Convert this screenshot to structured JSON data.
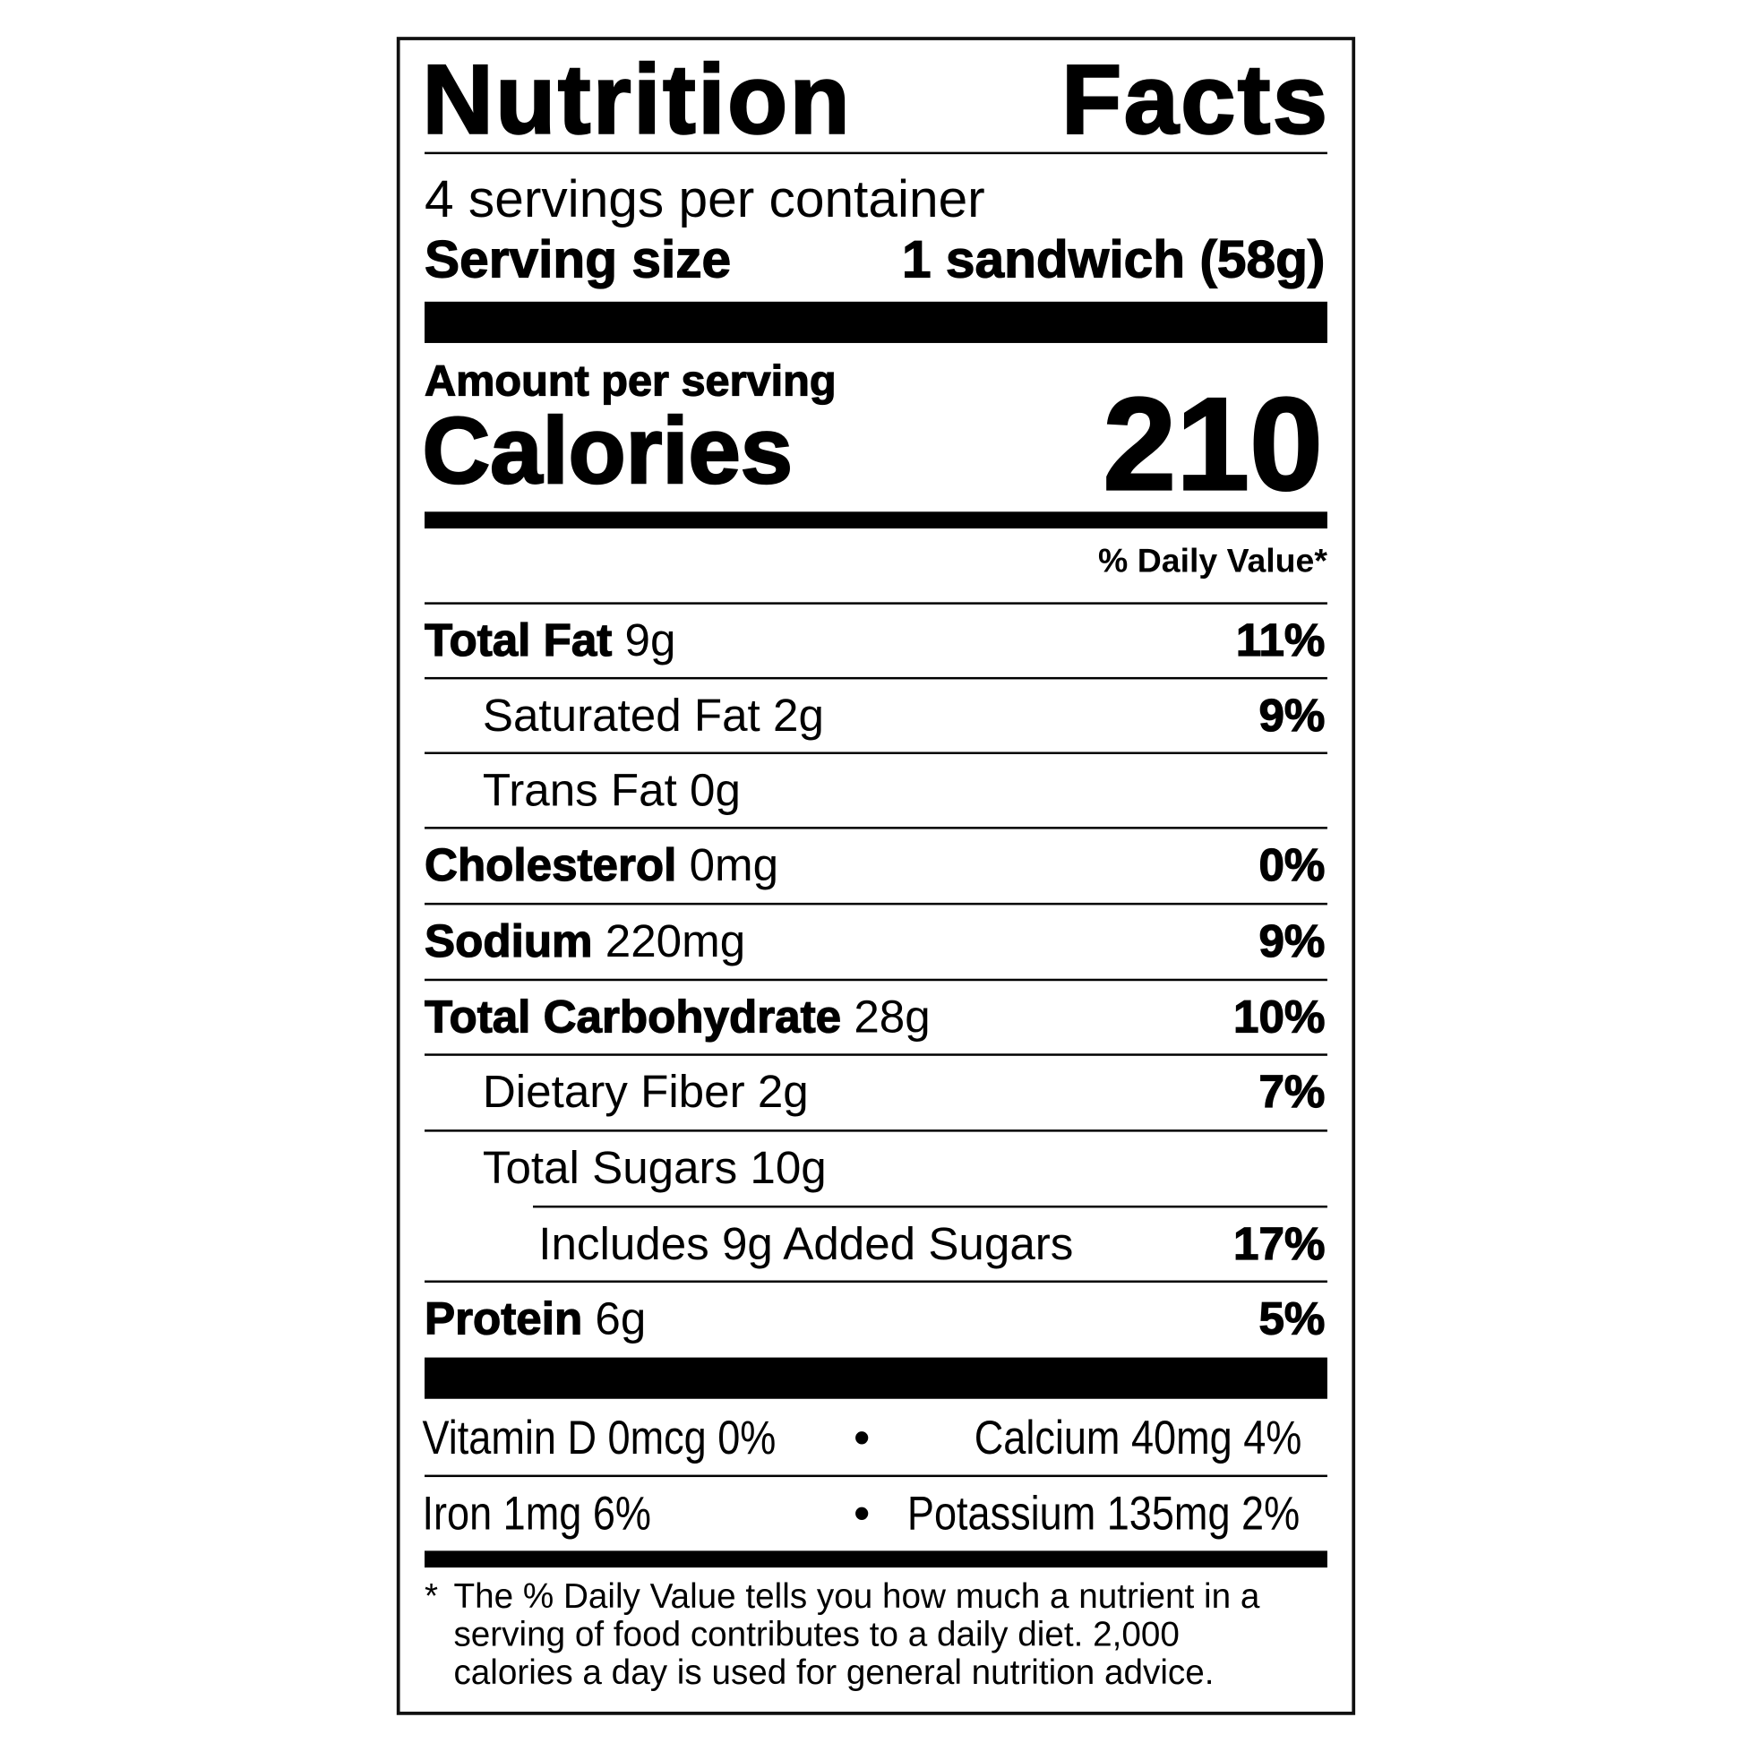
{
  "title_left": "Nutrition",
  "title_right": "Facts",
  "servings_per_container": "4 servings per container",
  "serving_size_label": "Serving size",
  "serving_size_value": "1 sandwich (58g)",
  "amount_per_serving": "Amount per serving",
  "calories_label": "Calories",
  "calories_value": "210",
  "daily_value_header": "% Daily Value*",
  "nutrients": [
    {
      "name": "Total Fat",
      "amount": "9g",
      "dv": "11%"
    },
    {
      "name": "Saturated Fat",
      "amount": "2g",
      "dv": "9%"
    },
    {
      "name": "Trans Fat",
      "amount": "0g",
      "dv": ""
    },
    {
      "name": "Cholesterol",
      "amount": "0mg",
      "dv": "0%"
    },
    {
      "name": "Sodium",
      "amount": "220mg",
      "dv": "9%"
    },
    {
      "name": "Total Carbohydrate",
      "amount": "28g",
      "dv": "10%"
    },
    {
      "name": "Dietary Fiber",
      "amount": "2g",
      "dv": "7%"
    },
    {
      "name": "Total Sugars",
      "amount": "10g",
      "dv": ""
    },
    {
      "name": "Includes 9g Added Sugars",
      "amount": "",
      "dv": "17%"
    },
    {
      "name": "Protein",
      "amount": "6g",
      "dv": "5%"
    }
  ],
  "micronutrients": {
    "vitamin_d": "Vitamin D 0mcg 0%",
    "calcium": "Calcium 40mg 4%",
    "iron": "Iron 1mg 6%",
    "potassium": "Potassium 135mg 2%",
    "separator": "•"
  },
  "footnote": {
    "asterisk": "*",
    "line1": "The % Daily Value tells you how much a nutrient in a",
    "line2": "serving of food contributes to a daily diet. 2,000",
    "line3": "calories a day is used for general nutrition advice."
  }
}
